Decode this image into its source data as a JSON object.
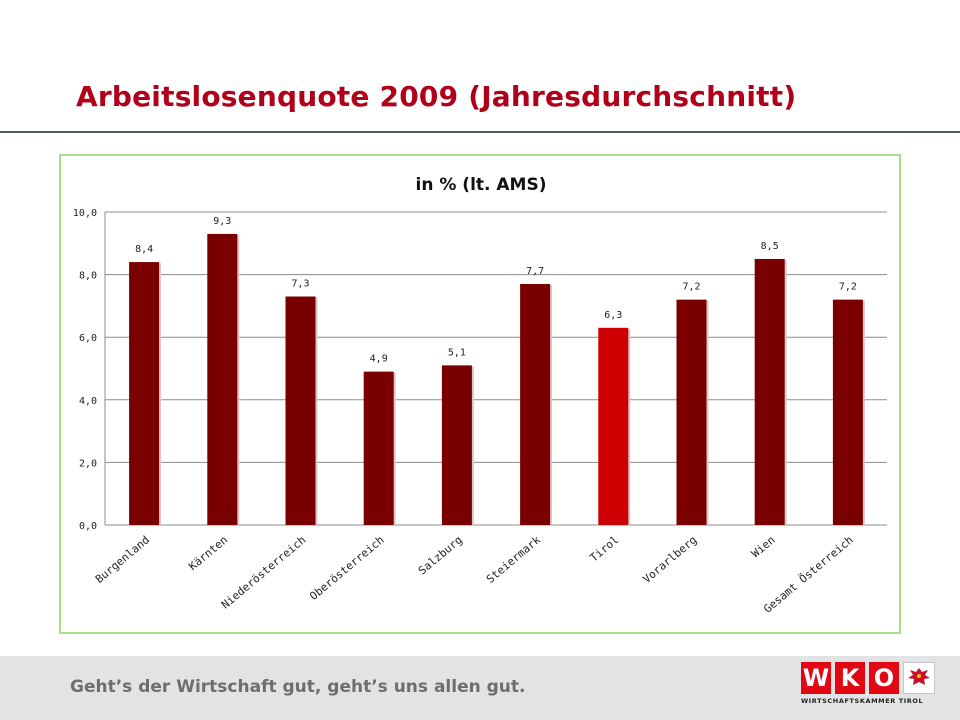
{
  "slide": {
    "title": "Arbeitslosenquote 2009 (Jahresdurchschnitt)"
  },
  "chart_data": {
    "type": "bar",
    "title": "in % (lt. AMS)",
    "categories": [
      "Burgenland",
      "Kärnten",
      "Niederösterreich",
      "Oberösterreich",
      "Salzburg",
      "Steiermark",
      "Tirol",
      "Vorarlberg",
      "Wien",
      "Gesamt Österreich"
    ],
    "values": [
      8.4,
      9.3,
      7.3,
      4.9,
      5.1,
      7.7,
      6.3,
      7.2,
      8.5,
      7.2
    ],
    "value_labels": [
      "8,4",
      "9,3",
      "7,3",
      "4,9",
      "5,1",
      "7,7",
      "6,3",
      "7,2",
      "8,5",
      "7,2"
    ],
    "yticks": [
      0,
      2,
      4,
      6,
      8,
      10
    ],
    "ytick_labels": [
      "0,0",
      "2,0",
      "4,0",
      "6,0",
      "8,0",
      "10,0"
    ],
    "ylim": [
      0,
      10
    ],
    "xlabel": "",
    "ylabel": "",
    "grid": true,
    "legend": "none",
    "bar_color": "#7a0000",
    "highlight_color": "#cc0000",
    "highlight_category": "Tirol"
  },
  "footer": {
    "slogan": "Geht’s der Wirtschaft gut, geht’s uns allen gut."
  },
  "logo": {
    "letters": [
      "W",
      "K",
      "O"
    ],
    "subtitle": "WIRTSCHAFTSKAMMER TIROL",
    "crest_icon": "tyrol-eagle-icon",
    "color": "#e30613"
  }
}
